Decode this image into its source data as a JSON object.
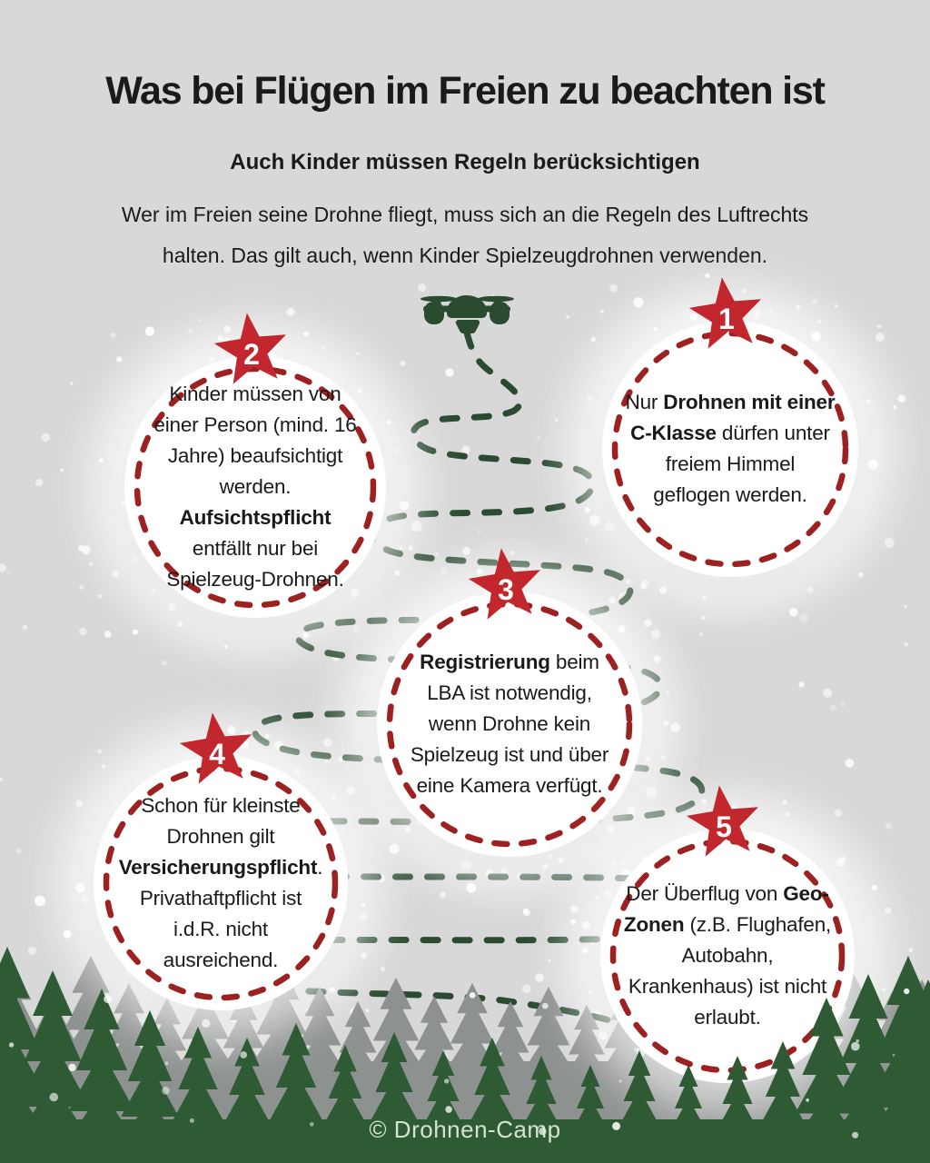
{
  "header": {
    "title": "Was bei Flügen im Freien zu beachten ist",
    "subtitle": "Auch Kinder müssen Regeln berücksichtigen",
    "intro_lines": [
      "Wer im Freien seine Drohne fliegt, muss sich an die Regeln des Luftrechts",
      "halten. Das gilt auch, wenn Kinder Spielzeugdrohnen verwenden."
    ]
  },
  "rules": [
    {
      "number": "1",
      "segments": [
        {
          "t": "Nur ",
          "b": 0
        },
        {
          "t": "Drohnen mit einer C-Klasse",
          "b": 1
        },
        {
          "t": " dürfen unter freiem Himmel geflogen werden.",
          "b": 0
        }
      ]
    },
    {
      "number": "2",
      "segments": [
        {
          "t": "Kinder müssen von einer Person (mind. 16 Jahre) beaufsichtigt werden. ",
          "b": 0
        },
        {
          "t": "Aufsichtspflicht",
          "b": 1
        },
        {
          "t": " entfällt nur bei Spielzeug-Drohnen.",
          "b": 0
        }
      ]
    },
    {
      "number": "3",
      "segments": [
        {
          "t": "Registrierung",
          "b": 1
        },
        {
          "t": " beim LBA ist notwendig, wenn Drohne kein Spielzeug ist und über eine Kamera verfügt.",
          "b": 0
        }
      ]
    },
    {
      "number": "4",
      "segments": [
        {
          "t": "Schon für kleinste Drohnen gilt ",
          "b": 0
        },
        {
          "t": "Versicherungspflicht",
          "b": 1
        },
        {
          "t": ". Privathaftpflicht ist i.d.R. nicht ausreichend.",
          "b": 0
        }
      ]
    },
    {
      "number": "5",
      "segments": [
        {
          "t": "Der Überflug von ",
          "b": 0
        },
        {
          "t": "Geo-Zonen",
          "b": 1
        },
        {
          "t": " (z.B. Flughafen, Autobahn, Krankenhaus) ist nicht erlaubt.",
          "b": 0
        }
      ]
    }
  ],
  "footer": {
    "copyright": "© Drohnen-Camp"
  },
  "icons": {
    "drone": "quadcopter-drone-icon",
    "star": "star-number-badge-icon",
    "forest": "fir-forest-silhouette",
    "snow": "snow-dots",
    "path": "dashed-flight-path"
  },
  "colors": {
    "background": "#d8d8d8",
    "star_red": "#c1272d",
    "ring_red": "#9e2121",
    "path_green": "#2b4b31",
    "forest_green": "#2e5a34",
    "forest_gray": "#8d918f",
    "text": "#1a1a1a",
    "copyright": "#e4efe1"
  }
}
